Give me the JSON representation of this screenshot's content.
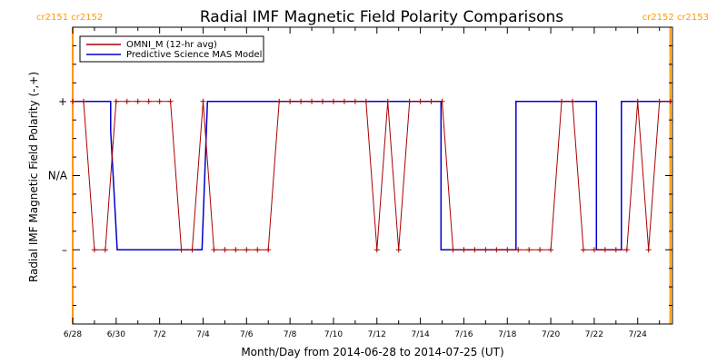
{
  "chart_data": {
    "type": "line",
    "title": "Radial IMF Magnetic Field Polarity Comparisons",
    "xlabel": "Month/Day from 2014-06-28 to 2014-07-25 (UT)",
    "ylabel": "Radial IMF Magnetic Field Polarity (-,+)",
    "xlim": [
      0,
      27.6
    ],
    "ylim": [
      -2,
      2
    ],
    "grid": false,
    "legend_position": "top-left",
    "colors": {
      "omni": "#aa0000",
      "model": "#0000cc",
      "cr": "#ff9900"
    },
    "x_ticks": [
      {
        "x": 0,
        "label": "6/28"
      },
      {
        "x": 2,
        "label": "6/30"
      },
      {
        "x": 4,
        "label": "7/2"
      },
      {
        "x": 6,
        "label": "7/4"
      },
      {
        "x": 8,
        "label": "7/6"
      },
      {
        "x": 10,
        "label": "7/8"
      },
      {
        "x": 12,
        "label": "7/10"
      },
      {
        "x": 14,
        "label": "7/12"
      },
      {
        "x": 16,
        "label": "7/14"
      },
      {
        "x": 18,
        "label": "7/16"
      },
      {
        "x": 20,
        "label": "7/18"
      },
      {
        "x": 22,
        "label": "7/20"
      },
      {
        "x": 24,
        "label": "7/22"
      },
      {
        "x": 26,
        "label": "7/24"
      }
    ],
    "y_ticks": [
      {
        "y": 1,
        "label": "+"
      },
      {
        "y": 0,
        "label": "N/A"
      },
      {
        "y": -1,
        "label": "–"
      }
    ],
    "carrington_markers": [
      {
        "x": 0,
        "labels": [
          "cr2151",
          "cr2152"
        ],
        "align": "left"
      },
      {
        "x": 27.5,
        "labels": [
          "cr2152",
          "cr2153"
        ],
        "align": "right"
      }
    ],
    "series": [
      {
        "name": "OMNI_M (12-hr avg)",
        "style": "line+markers",
        "x": [
          0,
          0.5,
          1,
          1.5,
          2,
          2.5,
          3,
          3.5,
          4,
          4.5,
          5,
          5.5,
          6,
          6.5,
          7,
          7.5,
          8,
          8.5,
          9,
          9.5,
          10,
          10.5,
          11,
          11.5,
          12,
          12.5,
          13,
          13.5,
          14,
          14.5,
          15,
          15.5,
          16,
          16.5,
          17,
          17.5,
          18,
          18.5,
          19,
          19.5,
          20,
          20.5,
          21,
          21.5,
          22,
          22.5,
          23,
          23.5,
          24,
          24.5,
          25,
          25.5,
          26,
          26.5,
          27,
          27.5
        ],
        "values": [
          1,
          1,
          -1,
          -1,
          1,
          1,
          1,
          1,
          1,
          1,
          -1,
          -1,
          1,
          -1,
          -1,
          -1,
          -1,
          -1,
          -1,
          1,
          1,
          1,
          1,
          1,
          1,
          1,
          1,
          1,
          -1,
          1,
          -1,
          1,
          1,
          1,
          1,
          -1,
          -1,
          -1,
          -1,
          -1,
          -1,
          -1,
          -1,
          -1,
          -1,
          1,
          1,
          -1,
          -1,
          -1,
          -1,
          -1,
          1,
          -1,
          1,
          1
        ]
      },
      {
        "name": "Predictive Science MAS Model",
        "style": "step",
        "x": [
          0,
          1.75,
          1.75,
          2.05,
          2.05,
          5.95,
          5.95,
          6.2,
          6.2,
          16.95,
          16.95,
          20.4,
          20.4,
          24.1,
          24.1,
          25.25,
          25.25,
          27.6
        ],
        "values": [
          1,
          1,
          0.6,
          -1,
          -1,
          -1,
          -1,
          1,
          1,
          1,
          -1,
          -1,
          1,
          1,
          -1,
          -1,
          1,
          1
        ]
      }
    ]
  }
}
